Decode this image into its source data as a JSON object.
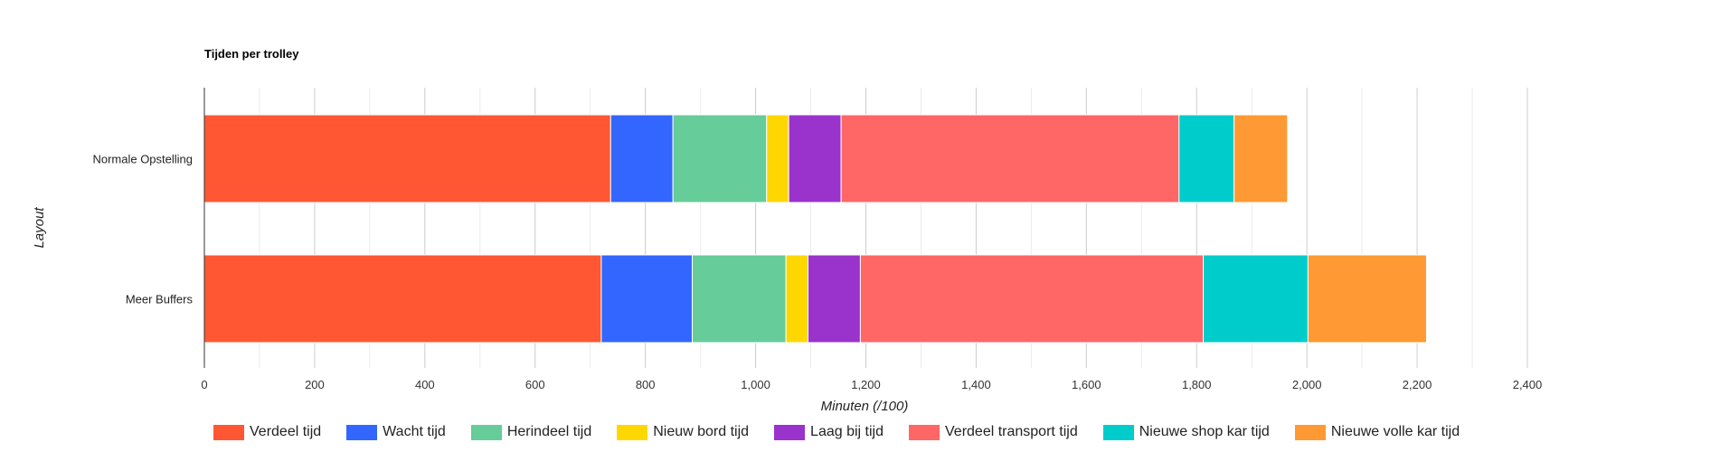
{
  "chart_data": {
    "type": "bar",
    "orientation": "horizontal",
    "stacked": true,
    "title": "Tijden per trolley",
    "xlabel": "Minuten (/100)",
    "ylabel": "Layout",
    "xlim": [
      0,
      2400
    ],
    "xticks": [
      "0",
      "200",
      "400",
      "600",
      "800",
      "1,000",
      "1,200",
      "1,400",
      "1,600",
      "1,800",
      "2,000",
      "2,200",
      "2,400"
    ],
    "grid": true,
    "legend_position": "bottom",
    "categories": [
      "Normale Opstelling",
      "Meer Buffers"
    ],
    "series": [
      {
        "name": "Verdeel tijd",
        "color": "#ff5733",
        "values": [
          737,
          720
        ]
      },
      {
        "name": "Wacht tijd",
        "color": "#3366ff",
        "values": [
          113,
          165
        ]
      },
      {
        "name": "Herindeel tijd",
        "color": "#66cc99",
        "values": [
          170,
          170
        ]
      },
      {
        "name": "Nieuw bord tijd",
        "color": "#ffd700",
        "values": [
          40,
          40
        ]
      },
      {
        "name": "Laag bij tijd",
        "color": "#9933cc",
        "values": [
          95,
          95
        ]
      },
      {
        "name": "Verdeel transport tijd",
        "color": "#ff6666",
        "values": [
          613,
          622
        ]
      },
      {
        "name": "Nieuwe shop kar tijd",
        "color": "#00cccc",
        "values": [
          100,
          190
        ]
      },
      {
        "name": "Nieuwe volle kar tijd",
        "color": "#ff9933",
        "values": [
          97,
          215
        ]
      }
    ]
  }
}
